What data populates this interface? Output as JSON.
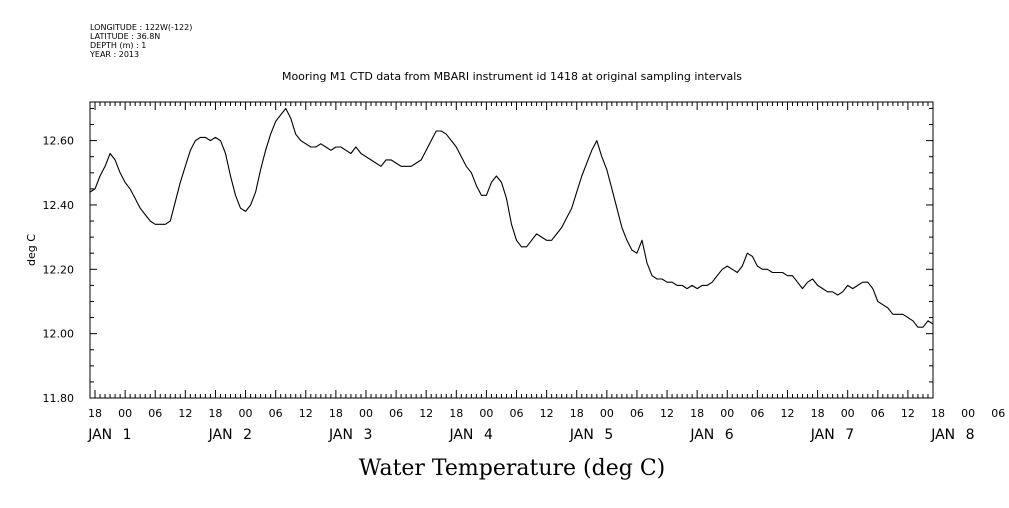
{
  "metadata": {
    "longitude": "LONGITUDE : 122W(-122)",
    "latitude": "LATITUDE : 36.8N",
    "depth": "DEPTH (m) : 1",
    "year": "YEAR : 2013"
  },
  "chart_data": {
    "type": "line",
    "title": "Mooring M1 CTD data from MBARI instrument id 1418 at original sampling intervals",
    "xlabel": "Water Temperature (deg C)",
    "ylabel": "deg C",
    "ylim": [
      11.8,
      12.72
    ],
    "xlim_hours": [
      -7,
      161
    ],
    "y_ticks": [
      "11.80",
      "12.00",
      "12.20",
      "12.40",
      "12.60"
    ],
    "y_tick_values": [
      11.8,
      12.0,
      12.2,
      12.4,
      12.6
    ],
    "x_hour_labels": [
      "18",
      "00",
      "06",
      "12",
      "18",
      "00",
      "06",
      "12",
      "18",
      "00",
      "06",
      "12",
      "18",
      "00",
      "06",
      "12",
      "18",
      "00",
      "06",
      "12",
      "18",
      "00",
      "06",
      "12",
      "18",
      "00",
      "06",
      "12",
      "18",
      "00",
      "06",
      "12"
    ],
    "x_day_labels": [
      {
        "month": "JAN",
        "day": "1"
      },
      {
        "month": "JAN",
        "day": "2"
      },
      {
        "month": "JAN",
        "day": "3"
      },
      {
        "month": "JAN",
        "day": "4"
      },
      {
        "month": "JAN",
        "day": "5"
      },
      {
        "month": "JAN",
        "day": "6"
      },
      {
        "month": "JAN",
        "day": "7"
      },
      {
        "month": "JAN",
        "day": "8"
      }
    ],
    "grid": false,
    "legend": "none",
    "series": [
      {
        "points": [
          [
            -7,
            12.44
          ],
          [
            -6,
            12.45
          ],
          [
            -5,
            12.49
          ],
          [
            -4,
            12.52
          ],
          [
            -3,
            12.56
          ],
          [
            -2,
            12.54
          ],
          [
            -1,
            12.5
          ],
          [
            0,
            12.47
          ],
          [
            1,
            12.45
          ],
          [
            2,
            12.42
          ],
          [
            3,
            12.39
          ],
          [
            4,
            12.37
          ],
          [
            5,
            12.35
          ],
          [
            6,
            12.34
          ],
          [
            7,
            12.34
          ],
          [
            8,
            12.34
          ],
          [
            9,
            12.35
          ],
          [
            10,
            12.41
          ],
          [
            11,
            12.47
          ],
          [
            12,
            12.52
          ],
          [
            13,
            12.57
          ],
          [
            14,
            12.6
          ],
          [
            15,
            12.61
          ],
          [
            16,
            12.61
          ],
          [
            17,
            12.6
          ],
          [
            18,
            12.61
          ],
          [
            19,
            12.6
          ],
          [
            20,
            12.56
          ],
          [
            21,
            12.49
          ],
          [
            22,
            12.43
          ],
          [
            23,
            12.39
          ],
          [
            24,
            12.38
          ],
          [
            25,
            12.4
          ],
          [
            26,
            12.44
          ],
          [
            27,
            12.51
          ],
          [
            28,
            12.57
          ],
          [
            29,
            12.62
          ],
          [
            30,
            12.66
          ],
          [
            31,
            12.68
          ],
          [
            32,
            12.7
          ],
          [
            33,
            12.67
          ],
          [
            34,
            12.62
          ],
          [
            35,
            12.6
          ],
          [
            36,
            12.59
          ],
          [
            37,
            12.58
          ],
          [
            38,
            12.58
          ],
          [
            39,
            12.59
          ],
          [
            40,
            12.58
          ],
          [
            41,
            12.57
          ],
          [
            42,
            12.58
          ],
          [
            43,
            12.58
          ],
          [
            44,
            12.57
          ],
          [
            45,
            12.56
          ],
          [
            46,
            12.58
          ],
          [
            47,
            12.56
          ],
          [
            48,
            12.55
          ],
          [
            49,
            12.54
          ],
          [
            50,
            12.53
          ],
          [
            51,
            12.52
          ],
          [
            52,
            12.54
          ],
          [
            53,
            12.54
          ],
          [
            54,
            12.53
          ],
          [
            55,
            12.52
          ],
          [
            56,
            12.52
          ],
          [
            57,
            12.52
          ],
          [
            58,
            12.53
          ],
          [
            59,
            12.54
          ],
          [
            60,
            12.57
          ],
          [
            61,
            12.6
          ],
          [
            62,
            12.63
          ],
          [
            63,
            12.63
          ],
          [
            64,
            12.62
          ],
          [
            65,
            12.6
          ],
          [
            66,
            12.58
          ],
          [
            67,
            12.55
          ],
          [
            68,
            12.52
          ],
          [
            69,
            12.5
          ],
          [
            70,
            12.46
          ],
          [
            71,
            12.43
          ],
          [
            72,
            12.43
          ],
          [
            73,
            12.47
          ],
          [
            74,
            12.49
          ],
          [
            75,
            12.47
          ],
          [
            76,
            12.42
          ],
          [
            77,
            12.34
          ],
          [
            78,
            12.29
          ],
          [
            79,
            12.27
          ],
          [
            80,
            12.27
          ],
          [
            81,
            12.29
          ],
          [
            82,
            12.31
          ],
          [
            83,
            12.3
          ],
          [
            84,
            12.29
          ],
          [
            85,
            12.29
          ],
          [
            86,
            12.31
          ],
          [
            87,
            12.33
          ],
          [
            88,
            12.36
          ],
          [
            89,
            12.39
          ],
          [
            90,
            12.44
          ],
          [
            91,
            12.49
          ],
          [
            92,
            12.53
          ],
          [
            93,
            12.57
          ],
          [
            94,
            12.6
          ],
          [
            95,
            12.55
          ],
          [
            96,
            12.51
          ],
          [
            97,
            12.45
          ],
          [
            98,
            12.39
          ],
          [
            99,
            12.33
          ],
          [
            100,
            12.29
          ],
          [
            101,
            12.26
          ],
          [
            102,
            12.25
          ],
          [
            103,
            12.29
          ],
          [
            104,
            12.22
          ],
          [
            105,
            12.18
          ],
          [
            106,
            12.17
          ],
          [
            107,
            12.17
          ],
          [
            108,
            12.16
          ],
          [
            109,
            12.16
          ],
          [
            110,
            12.15
          ],
          [
            111,
            12.15
          ],
          [
            112,
            12.14
          ],
          [
            113,
            12.15
          ],
          [
            114,
            12.14
          ],
          [
            115,
            12.15
          ],
          [
            116,
            12.15
          ],
          [
            117,
            12.16
          ],
          [
            118,
            12.18
          ],
          [
            119,
            12.2
          ],
          [
            120,
            12.21
          ],
          [
            121,
            12.2
          ],
          [
            122,
            12.19
          ],
          [
            123,
            12.21
          ],
          [
            124,
            12.25
          ],
          [
            125,
            12.24
          ],
          [
            126,
            12.21
          ],
          [
            127,
            12.2
          ],
          [
            128,
            12.2
          ],
          [
            129,
            12.19
          ],
          [
            130,
            12.19
          ],
          [
            131,
            12.19
          ],
          [
            132,
            12.18
          ],
          [
            133,
            12.18
          ],
          [
            134,
            12.16
          ],
          [
            135,
            12.14
          ],
          [
            136,
            12.16
          ],
          [
            137,
            12.17
          ],
          [
            138,
            12.15
          ],
          [
            139,
            12.14
          ],
          [
            140,
            12.13
          ],
          [
            141,
            12.13
          ],
          [
            142,
            12.12
          ],
          [
            143,
            12.13
          ],
          [
            144,
            12.15
          ],
          [
            145,
            12.14
          ],
          [
            146,
            12.15
          ],
          [
            147,
            12.16
          ],
          [
            148,
            12.16
          ],
          [
            149,
            12.14
          ],
          [
            150,
            12.1
          ],
          [
            151,
            12.09
          ],
          [
            152,
            12.08
          ],
          [
            153,
            12.06
          ],
          [
            154,
            12.06
          ],
          [
            155,
            12.06
          ],
          [
            156,
            12.05
          ],
          [
            157,
            12.04
          ],
          [
            158,
            12.02
          ],
          [
            159,
            12.02
          ],
          [
            160,
            12.04
          ],
          [
            161,
            12.03
          ]
        ]
      }
    ]
  }
}
